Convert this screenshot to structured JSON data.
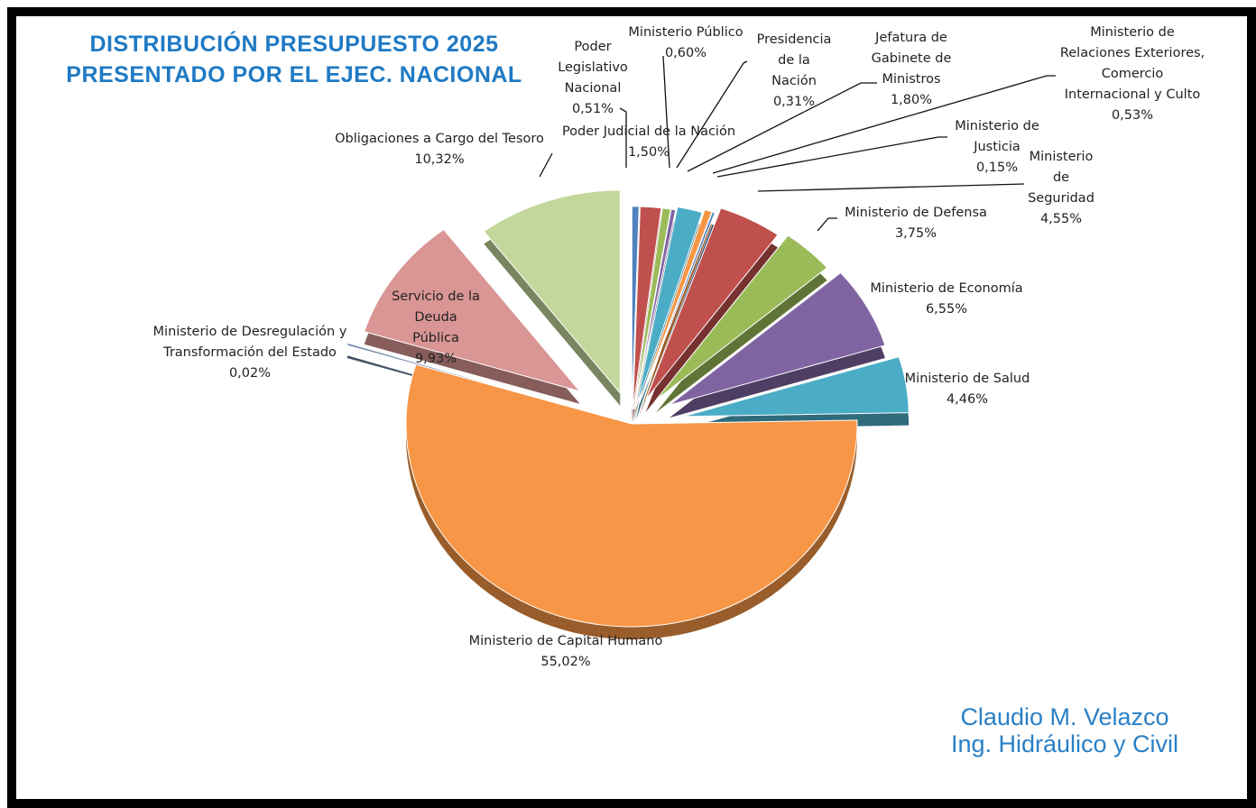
{
  "header": {
    "title_line1": "DISTRIBUCIÓN PRESUPUESTO 2025",
    "title_line2": "PRESENTADO POR EL EJEC. NACIONAL"
  },
  "author": {
    "name": "Claudio M. Velazco",
    "profession": "Ing. Hidráulico y Civil"
  },
  "chart_data": {
    "type": "pie",
    "title": "DISTRIBUCIÓN PRESUPUESTO 2025 PRESENTADO POR EL EJEC. NACIONAL",
    "style": "3d-exploded",
    "start": "top",
    "direction": "clockwise",
    "unit": "%",
    "slices": [
      {
        "label": "Poder Legislativo Nacional",
        "value": 0.51,
        "value_label": "0,51%",
        "color": "#4f81bd"
      },
      {
        "label": "Poder Judicial de la Nación",
        "value": 1.5,
        "value_label": "1,50%",
        "color": "#c0504d"
      },
      {
        "label": "Ministerio Público",
        "value": 0.6,
        "value_label": "0,60%",
        "color": "#9bbb59"
      },
      {
        "label": "Presidencia de la Nación",
        "value": 0.31,
        "value_label": "0,31%",
        "color": "#8064a2"
      },
      {
        "label": "Jefatura de Gabinete de Ministros",
        "value": 1.8,
        "value_label": "1,80%",
        "color": "#4bacc6"
      },
      {
        "label": "Ministerio de Relaciones Exteriores, Comercio Internacional y Culto",
        "value": 0.53,
        "value_label": "0,53%",
        "color": "#f79646"
      },
      {
        "label": "Ministerio de Justicia",
        "value": 0.15,
        "value_label": "0,15%",
        "color": "#4f81bd"
      },
      {
        "label": "Ministerio de Seguridad",
        "value": 4.55,
        "value_label": "4,55%",
        "color": "#c0504d"
      },
      {
        "label": "Ministerio de Defensa",
        "value": 3.75,
        "value_label": "3,75%",
        "color": "#9bbb59"
      },
      {
        "label": "Ministerio de Economía",
        "value": 6.55,
        "value_label": "6,55%",
        "color": "#8064a2"
      },
      {
        "label": "Ministerio de Salud",
        "value": 4.46,
        "value_label": "4,46%",
        "color": "#4bacc6"
      },
      {
        "label": "Ministerio de Capital Humano",
        "value": 55.02,
        "value_label": "55,02%",
        "color": "#f79646"
      },
      {
        "label": "Ministerio de Desregulación y Transformación del Estado",
        "value": 0.02,
        "value_label": "0,02%",
        "color": "#6f84a8"
      },
      {
        "label": "Servicio de la Deuda Pública",
        "value": 9.93,
        "value_label": "9,93%",
        "color": "#d99694"
      },
      {
        "label": "Obligaciones a Cargo del Tesoro",
        "value": 10.32,
        "value_label": "10,32%",
        "color": "#c3d69b"
      }
    ],
    "label_lines": [
      [
        "Poder",
        "Legislativo",
        "Nacional",
        "0,51%"
      ],
      [
        "Poder Judicial de la Nación",
        "1,50%"
      ],
      [
        "Ministerio Público",
        "0,60%"
      ],
      [
        "Presidencia",
        "de la",
        "Nación",
        "0,31%"
      ],
      [
        "Jefatura de",
        "Gabinete de",
        "Ministros",
        "1,80%"
      ],
      [
        "Ministerio de",
        "Relaciones Exteriores,",
        "Comercio",
        "Internacional y Culto",
        "0,53%"
      ],
      [
        "Ministerio de",
        "Justicia",
        "0,15%"
      ],
      [
        "Ministerio",
        "de",
        "Seguridad",
        "4,55%"
      ],
      [
        "Ministerio de Defensa",
        "3,75%"
      ],
      [
        "Ministerio de Economía",
        "6,55%"
      ],
      [
        "Ministerio de Salud",
        "4,46%"
      ],
      [
        "Ministerio de Capital Humano",
        "55,02%"
      ],
      [
        "Ministerio de Desregulación y",
        "Transformación del Estado",
        "0,02%"
      ],
      [
        "Servicio de la",
        "Deuda",
        "Pública",
        "9,93%"
      ],
      [
        "Obligaciones a Cargo del Tesoro",
        "10,32%"
      ]
    ]
  }
}
